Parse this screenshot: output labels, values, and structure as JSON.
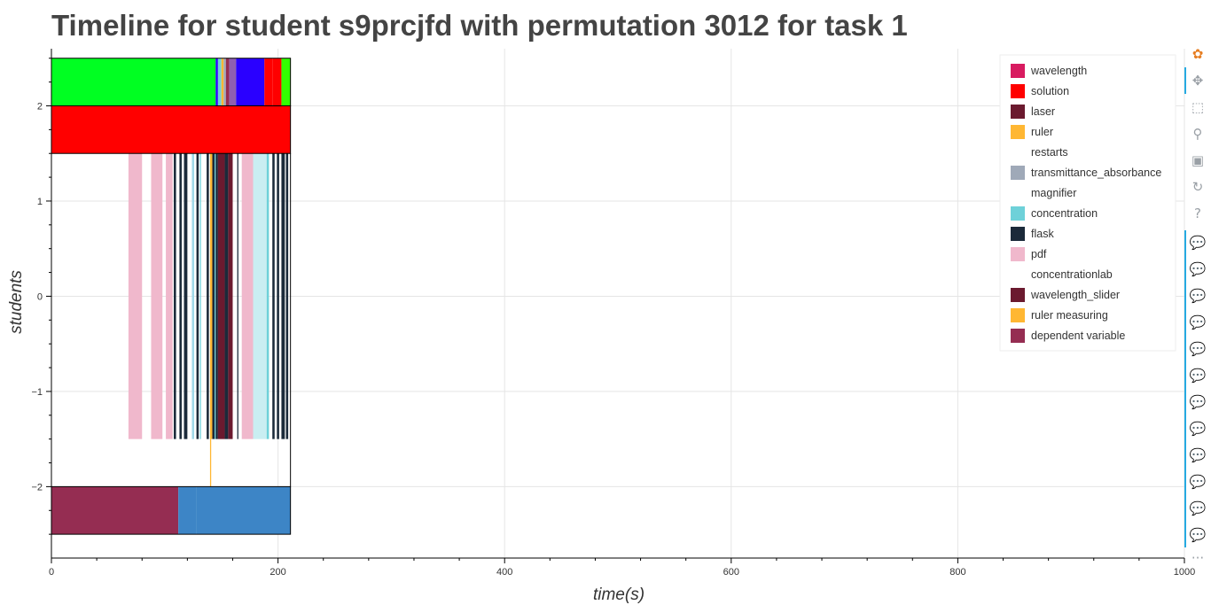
{
  "title": "Timeline for student s9prcjfd with permutation 3012 for task 1",
  "chart_data": {
    "type": "timeline",
    "xlabel": "time(s)",
    "ylabel": "students",
    "xlim": [
      0,
      1000
    ],
    "ylim": [
      -2.75,
      2.6
    ],
    "x_ticks": [
      0,
      200,
      400,
      600,
      800,
      1000
    ],
    "y_ticks": [
      -2,
      -1,
      0,
      1,
      2
    ],
    "grid": true,
    "legend_position": "top-right",
    "legend": [
      {
        "label": "wavelength",
        "color": "#d81b60"
      },
      {
        "label": "solution",
        "color": "#ff0000"
      },
      {
        "label": "laser",
        "color": "#6b1a2f"
      },
      {
        "label": "ruler",
        "color": "#ffb733"
      },
      {
        "label": "restarts",
        "color": "#ffffff"
      },
      {
        "label": "transmittance_absorbance",
        "color": "#9fa9b8"
      },
      {
        "label": "magnifier",
        "color": "#ffffff"
      },
      {
        "label": "concentration",
        "color": "#6ed1d9"
      },
      {
        "label": "flask",
        "color": "#1b2a3a"
      },
      {
        "label": "pdf",
        "color": "#f0b8cc"
      },
      {
        "label": "concentrationlab",
        "color": "#ffffff"
      },
      {
        "label": "wavelength_slider",
        "color": "#6b1a2f"
      },
      {
        "label": "ruler measuring",
        "color": "#ffb733"
      },
      {
        "label": "dependent variable",
        "color": "#952d52"
      }
    ],
    "bars": [
      {
        "y0": 2.0,
        "y1": 2.5,
        "x0": 0,
        "x1": 145,
        "color": "#00ff22"
      },
      {
        "y0": 2.0,
        "y1": 2.5,
        "x0": 145,
        "x1": 147,
        "color": "#2a00ff"
      },
      {
        "y0": 2.0,
        "y1": 2.5,
        "x0": 147,
        "x1": 150,
        "color": "#6ed1d9"
      },
      {
        "y0": 2.0,
        "y1": 2.5,
        "x0": 150,
        "x1": 152,
        "color": "#ffb733"
      },
      {
        "y0": 2.0,
        "y1": 2.5,
        "x0": 152,
        "x1": 154,
        "color": "#9fa9b8"
      },
      {
        "y0": 2.0,
        "y1": 2.5,
        "x0": 154,
        "x1": 157,
        "color": "#952d52"
      },
      {
        "y0": 2.0,
        "y1": 2.5,
        "x0": 157,
        "x1": 163,
        "color": "#8e5fb0"
      },
      {
        "y0": 2.0,
        "y1": 2.5,
        "x0": 163,
        "x1": 188,
        "color": "#2a00ff"
      },
      {
        "y0": 2.0,
        "y1": 2.5,
        "x0": 188,
        "x1": 195,
        "color": "#ff0000"
      },
      {
        "y0": 2.0,
        "y1": 2.5,
        "x0": 195,
        "x1": 203,
        "color": "#ff0000"
      },
      {
        "y0": 2.0,
        "y1": 2.5,
        "x0": 203,
        "x1": 211,
        "color": "#33ff00"
      },
      {
        "y0": 1.5,
        "y1": 2.0,
        "x0": 0,
        "x1": 211,
        "color": "#ff0000"
      },
      {
        "y0": -1.5,
        "y1": 1.5,
        "x0": 68,
        "x1": 80,
        "color": "#f0b8cc"
      },
      {
        "y0": -1.5,
        "y1": 1.5,
        "x0": 88,
        "x1": 98,
        "color": "#f0b8cc"
      },
      {
        "y0": -1.5,
        "y1": 1.5,
        "x0": 101,
        "x1": 107,
        "color": "#f0b8cc"
      },
      {
        "y0": -1.5,
        "y1": 1.5,
        "x0": 108,
        "x1": 110,
        "color": "#1b2a3a"
      },
      {
        "y0": -1.5,
        "y1": 1.5,
        "x0": 113,
        "x1": 115,
        "color": "#1b2a3a"
      },
      {
        "y0": -1.5,
        "y1": 1.5,
        "x0": 117,
        "x1": 120,
        "color": "#1b2a3a"
      },
      {
        "y0": -1.5,
        "y1": 1.5,
        "x0": 124,
        "x1": 126,
        "color": "#9fd8e8"
      },
      {
        "y0": -1.5,
        "y1": 1.5,
        "x0": 128,
        "x1": 130,
        "color": "#1b2a3a"
      },
      {
        "y0": -1.5,
        "y1": 1.5,
        "x0": 131,
        "x1": 132,
        "color": "#6ed1d9"
      },
      {
        "y0": -1.5,
        "y1": 1.5,
        "x0": 137,
        "x1": 139,
        "color": "#1b2a3a"
      },
      {
        "y0": -1.5,
        "y1": 1.5,
        "x0": 140,
        "x1": 142,
        "color": "#ffb733"
      },
      {
        "y0": -1.5,
        "y1": 1.5,
        "x0": 142,
        "x1": 144,
        "color": "#1b2a3a"
      },
      {
        "y0": -1.5,
        "y1": 1.5,
        "x0": 144,
        "x1": 145,
        "color": "#6ed1d9"
      },
      {
        "y0": -1.5,
        "y1": 1.5,
        "x0": 145,
        "x1": 147,
        "color": "#1b2a3a"
      },
      {
        "y0": -1.5,
        "y1": 1.5,
        "x0": 147,
        "x1": 153,
        "color": "#6b1a2f"
      },
      {
        "y0": -1.5,
        "y1": 1.5,
        "x0": 153,
        "x1": 156,
        "color": "#1b2a3a"
      },
      {
        "y0": -1.5,
        "y1": 1.5,
        "x0": 156,
        "x1": 160,
        "color": "#6b1a2f"
      },
      {
        "y0": -1.5,
        "y1": 1.5,
        "x0": 164,
        "x1": 165,
        "color": "#1b2a3a"
      },
      {
        "y0": -1.5,
        "y1": 1.5,
        "x0": 168,
        "x1": 178,
        "color": "#f0b8cc"
      },
      {
        "y0": -1.5,
        "y1": 1.5,
        "x0": 178,
        "x1": 190,
        "color": "#c9eef2"
      },
      {
        "y0": -1.5,
        "y1": 1.5,
        "x0": 190,
        "x1": 192,
        "color": "#6ed1d9"
      },
      {
        "y0": -1.5,
        "y1": 1.5,
        "x0": 195,
        "x1": 197,
        "color": "#1b2a3a"
      },
      {
        "y0": -1.5,
        "y1": 1.5,
        "x0": 199,
        "x1": 201,
        "color": "#1b2a3a"
      },
      {
        "y0": -1.5,
        "y1": 1.5,
        "x0": 203,
        "x1": 206,
        "color": "#1b2a3a"
      },
      {
        "y0": -1.5,
        "y1": 1.5,
        "x0": 207,
        "x1": 209,
        "color": "#1b2a3a"
      },
      {
        "y0": -2.0,
        "y1": -1.5,
        "x0": 140,
        "x1": 141,
        "color": "#ffb733"
      },
      {
        "y0": -2.5,
        "y1": -2.0,
        "x0": 0,
        "x1": 112,
        "color": "#952d52"
      },
      {
        "y0": -2.5,
        "y1": -2.0,
        "x0": 112,
        "x1": 128,
        "color": "#3d85c6"
      },
      {
        "y0": -2.5,
        "y1": -2.0,
        "x0": 128,
        "x1": 211,
        "color": "#3d85c6"
      }
    ],
    "outlines": [
      {
        "y0": 2.0,
        "y1": 2.5,
        "x0": 0,
        "x1": 211
      },
      {
        "y0": 1.5,
        "y1": 2.0,
        "x0": 0,
        "x1": 211
      },
      {
        "y0": -2.5,
        "y1": -2.0,
        "x0": 0,
        "x1": 211
      }
    ],
    "outline_color": "#000000"
  },
  "toolbar": {
    "tools": [
      {
        "name": "bokeh-logo-icon",
        "glyph": "✿"
      },
      {
        "name": "pan-icon",
        "glyph": "✥"
      },
      {
        "name": "box-zoom-icon",
        "glyph": "⬚"
      },
      {
        "name": "wheel-zoom-icon",
        "glyph": "⚲"
      },
      {
        "name": "save-icon",
        "glyph": "▣"
      },
      {
        "name": "reset-icon",
        "glyph": "↻"
      },
      {
        "name": "help-icon",
        "glyph": "?"
      },
      {
        "name": "hover-icon",
        "glyph": "💬"
      }
    ],
    "hover_count": 12,
    "more_glyph": "···"
  }
}
